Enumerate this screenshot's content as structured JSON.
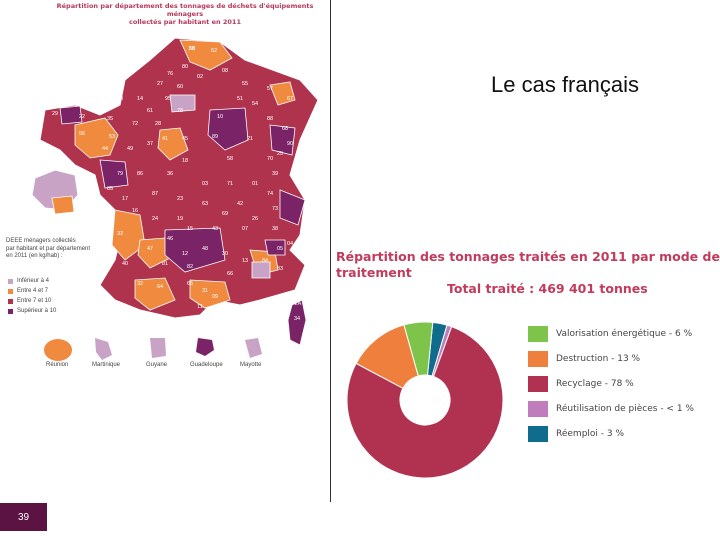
{
  "slide": {
    "number": "39",
    "title": "Le cas français"
  },
  "map": {
    "title_line1": "Répartition par département des tonnages de déchets d'équipements ménagers",
    "title_line2": "collectés par habitant en 2011",
    "legend_title_lines": [
      "DEEE ménagers collectés",
      "par habitant et par département",
      "en 2011 (en kg/hab) :"
    ],
    "legend": [
      {
        "label": "Inférieur à 4",
        "color": "#c9a3c6"
      },
      {
        "label": "Entre 4 et 7",
        "color": "#ef8a3e"
      },
      {
        "label": "Entre 7 et 10",
        "color": "#b0334e"
      },
      {
        "label": "Supérieur à 10",
        "color": "#7a2366"
      }
    ],
    "dom": [
      "Réunion",
      "Martinique",
      "Guyane",
      "Guadeloupe",
      "Mayotte"
    ],
    "department_numbers": [
      "59",
      "62",
      "80",
      "76",
      "02",
      "60",
      "08",
      "95",
      "57",
      "67",
      "29",
      "22",
      "56",
      "35",
      "50",
      "14",
      "61",
      "27",
      "78",
      "28",
      "72",
      "53",
      "44",
      "49",
      "37",
      "41",
      "45",
      "89",
      "10",
      "51",
      "55",
      "54",
      "88",
      "68",
      "90",
      "70",
      "21",
      "25",
      "39",
      "58",
      "18",
      "36",
      "86",
      "79",
      "85",
      "17",
      "16",
      "87",
      "23",
      "03",
      "71",
      "01",
      "74",
      "73",
      "42",
      "69",
      "63",
      "19",
      "24",
      "33",
      "40",
      "47",
      "46",
      "15",
      "43",
      "07",
      "26",
      "38",
      "05",
      "04",
      "06",
      "83",
      "84",
      "13",
      "30",
      "48",
      "12",
      "82",
      "81",
      "32",
      "64",
      "65",
      "31",
      "09",
      "11",
      "66",
      "34",
      "2A",
      "2B"
    ]
  },
  "chart_data": {
    "type": "pie",
    "donut": true,
    "title_line1": "Répartition des tonnages traités en 2011 par mode de traitement",
    "title_line2": "Total traité : 469 401 tonnes",
    "series": [
      {
        "label": "Valorisation énergétique - 6 %",
        "value": 6,
        "color": "#7fc44a"
      },
      {
        "label": "Destruction - 13 %",
        "value": 13,
        "color": "#ef7f3d"
      },
      {
        "label": "Recyclage - 78 %",
        "value": 78,
        "color": "#b13250"
      },
      {
        "label": "Réutilisation de pièces - < 1 %",
        "value": 1,
        "color": "#c07dbd"
      },
      {
        "label": "Réemploi - 3 %",
        "value": 3,
        "color": "#0f6c8c"
      }
    ],
    "legend_position": "right"
  }
}
